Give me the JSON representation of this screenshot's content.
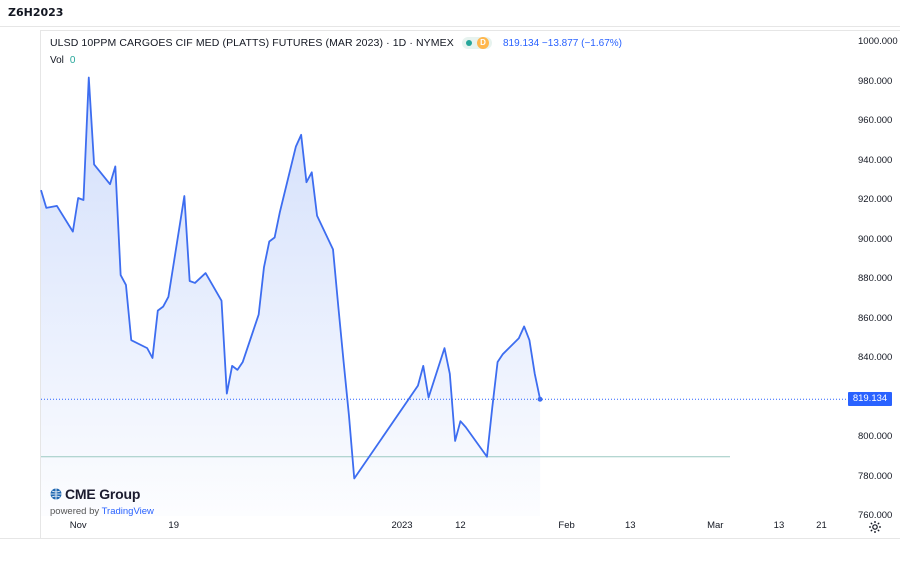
{
  "symbol": "Z6H2023",
  "legend": {
    "title": "ULSD 10PPM CARGOES CIF MED (PLATTS) FUTURES (MAR 2023) · 1D · NYMEX",
    "badge": "D",
    "price_change": "819.134 −13.877 (−1.67%)",
    "vol_label": "Vol",
    "vol_value": "0"
  },
  "last_price_tag": "819.134",
  "branding": {
    "logo": "CME Group",
    "powered_by": "powered by",
    "tradingview": "TradingView"
  },
  "icons": {
    "settings": "gear-icon",
    "logo": "globe-icon",
    "status": "market-status-icon"
  },
  "colors": {
    "line": "#3d6df0",
    "fill": "#c9d8fb",
    "price_tag": "#2962ff",
    "hline": "#9cc9c2"
  },
  "chart_data": {
    "type": "area",
    "title": "ULSD 10PPM CARGOES CIF MED (PLATTS) FUTURES (MAR 2023) · 1D · NYMEX",
    "ylim": [
      760,
      1000
    ],
    "yticks": [
      "1000.000",
      "980.000",
      "960.000",
      "940.000",
      "920.000",
      "900.000",
      "880.000",
      "860.000",
      "840.000",
      "820.000",
      "800.000",
      "780.000",
      "760.000"
    ],
    "xticks": [
      {
        "label": "Nov",
        "date": "2022-11-01"
      },
      {
        "label": "19",
        "date": "2022-11-19"
      },
      {
        "label": "2023",
        "date": "2023-01-01"
      },
      {
        "label": "12",
        "date": "2023-01-12"
      },
      {
        "label": "Feb",
        "date": "2023-02-01"
      },
      {
        "label": "13",
        "date": "2023-02-13"
      },
      {
        "label": "Mar",
        "date": "2023-03-01"
      },
      {
        "label": "13",
        "date": "2023-03-13"
      },
      {
        "label": "21",
        "date": "2023-03-21"
      }
    ],
    "xrange": [
      "2022-10-25",
      "2023-03-26"
    ],
    "reference_line": 790,
    "last_value": 819.134,
    "series": [
      {
        "points": [
          [
            "2022-10-25",
            925
          ],
          [
            "2022-10-26",
            916
          ],
          [
            "2022-10-28",
            917
          ],
          [
            "2022-10-31",
            904
          ],
          [
            "2022-11-01",
            921
          ],
          [
            "2022-11-02",
            920
          ],
          [
            "2022-11-03",
            982
          ],
          [
            "2022-11-04",
            938
          ],
          [
            "2022-11-07",
            928
          ],
          [
            "2022-11-08",
            937
          ],
          [
            "2022-11-09",
            882
          ],
          [
            "2022-11-10",
            877
          ],
          [
            "2022-11-11",
            849
          ],
          [
            "2022-11-14",
            845
          ],
          [
            "2022-11-15",
            840
          ],
          [
            "2022-11-16",
            864
          ],
          [
            "2022-11-17",
            866
          ],
          [
            "2022-11-18",
            871
          ],
          [
            "2022-11-21",
            922
          ],
          [
            "2022-11-22",
            879
          ],
          [
            "2022-11-23",
            878
          ],
          [
            "2022-11-25",
            883
          ],
          [
            "2022-11-28",
            869
          ],
          [
            "2022-11-29",
            822
          ],
          [
            "2022-11-30",
            836
          ],
          [
            "2022-12-01",
            834
          ],
          [
            "2022-12-02",
            838
          ],
          [
            "2022-12-05",
            862
          ],
          [
            "2022-12-06",
            886
          ],
          [
            "2022-12-07",
            899
          ],
          [
            "2022-12-08",
            901
          ],
          [
            "2022-12-09",
            914
          ],
          [
            "2022-12-12",
            947
          ],
          [
            "2022-12-13",
            953
          ],
          [
            "2022-12-14",
            929
          ],
          [
            "2022-12-15",
            934
          ],
          [
            "2022-12-16",
            912
          ],
          [
            "2022-12-19",
            895
          ],
          [
            "2022-12-20",
            866
          ],
          [
            "2022-12-21",
            838
          ],
          [
            "2022-12-22",
            811
          ],
          [
            "2022-12-23",
            779
          ],
          [
            "2023-01-04",
            826
          ],
          [
            "2023-01-05",
            836
          ],
          [
            "2023-01-06",
            820
          ],
          [
            "2023-01-09",
            845
          ],
          [
            "2023-01-10",
            832
          ],
          [
            "2023-01-11",
            798
          ],
          [
            "2023-01-12",
            808
          ],
          [
            "2023-01-13",
            805
          ],
          [
            "2023-01-17",
            790
          ],
          [
            "2023-01-18",
            815
          ],
          [
            "2023-01-19",
            838
          ],
          [
            "2023-01-20",
            842
          ],
          [
            "2023-01-23",
            850
          ],
          [
            "2023-01-24",
            856
          ],
          [
            "2023-01-25",
            849
          ],
          [
            "2023-01-26",
            832
          ],
          [
            "2023-01-27",
            819.134
          ]
        ]
      }
    ]
  }
}
